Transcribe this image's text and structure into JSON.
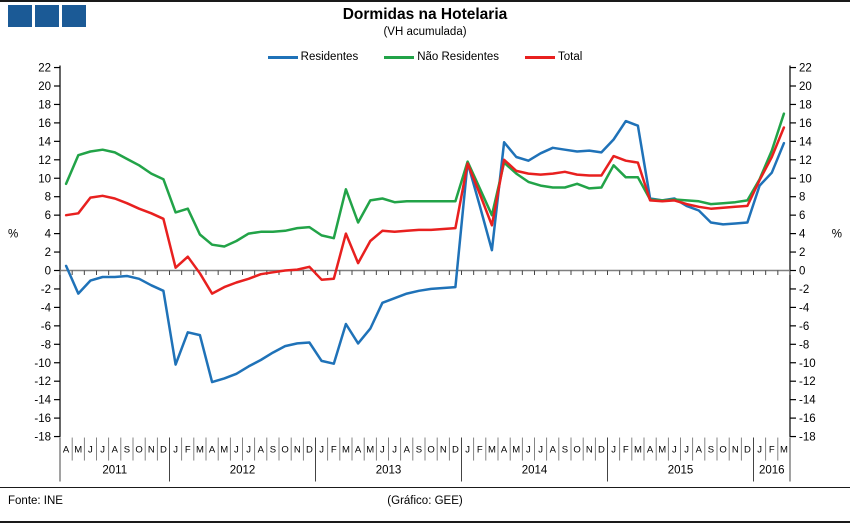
{
  "logo": {
    "square_color": "#1b5a96",
    "square_count": 3
  },
  "title": "Dormidas na Hotelaria",
  "subtitle": "(VH acumulada)",
  "legend": [
    {
      "label": "Residentes",
      "color": "#1f72b8"
    },
    {
      "label": "Não Residentes",
      "color": "#22a348"
    },
    {
      "label": "Total",
      "color": "#e8201f"
    }
  ],
  "footer": {
    "source": "Fonte: INE",
    "credit": "(Gráfico: GEE)"
  },
  "chart_data": {
    "type": "line",
    "title": "Dormidas na Hotelaria",
    "subtitle": "(VH acumulada)",
    "ylabel_left": "%",
    "ylabel_right": "%",
    "ylim": [
      -18,
      22
    ],
    "ytick_step": 2,
    "grid": false,
    "legend_position": "top",
    "years": [
      {
        "label": "2011",
        "months": [
          "A",
          "M",
          "J",
          "J",
          "A",
          "S",
          "O",
          "N",
          "D"
        ]
      },
      {
        "label": "2012",
        "months": [
          "J",
          "F",
          "M",
          "A",
          "M",
          "J",
          "J",
          "A",
          "S",
          "O",
          "N",
          "D"
        ]
      },
      {
        "label": "2013",
        "months": [
          "J",
          "F",
          "M",
          "A",
          "M",
          "J",
          "J",
          "A",
          "S",
          "O",
          "N",
          "D"
        ]
      },
      {
        "label": "2014",
        "months": [
          "J",
          "F",
          "M",
          "A",
          "M",
          "J",
          "J",
          "A",
          "S",
          "O",
          "N",
          "D"
        ]
      },
      {
        "label": "2015",
        "months": [
          "J",
          "F",
          "M",
          "A",
          "M",
          "J",
          "J",
          "A",
          "S",
          "O",
          "N",
          "D"
        ]
      },
      {
        "label": "2016",
        "months": [
          "J",
          "F",
          "M"
        ]
      }
    ],
    "series": [
      {
        "name": "Residentes",
        "color": "#1f72b8",
        "values": [
          0.5,
          -2.5,
          -1.1,
          -0.7,
          -0.7,
          -0.6,
          -0.9,
          -1.6,
          -2.2,
          -10.2,
          -6.7,
          -7.0,
          -12.1,
          -11.7,
          -11.2,
          -10.4,
          -9.7,
          -8.9,
          -8.2,
          -7.9,
          -7.8,
          -9.8,
          -10.1,
          -5.8,
          -7.9,
          -6.3,
          -3.5,
          -3.0,
          -2.5,
          -2.2,
          -2.0,
          -1.9,
          -1.8,
          11.7,
          7.0,
          2.2,
          13.9,
          12.3,
          11.9,
          12.7,
          13.3,
          13.1,
          12.9,
          13.0,
          12.8,
          14.2,
          16.2,
          15.7,
          7.8,
          7.6,
          7.8,
          7.0,
          6.5,
          5.2,
          5.0,
          5.1,
          5.2,
          9.2,
          10.6,
          13.8
        ]
      },
      {
        "name": "Não Residentes",
        "color": "#22a348",
        "values": [
          9.4,
          12.5,
          12.9,
          13.1,
          12.8,
          12.1,
          11.4,
          10.5,
          9.9,
          6.3,
          6.7,
          3.9,
          2.8,
          2.6,
          3.2,
          4.0,
          4.2,
          4.2,
          4.3,
          4.6,
          4.7,
          3.8,
          3.5,
          8.8,
          5.2,
          7.6,
          7.8,
          7.4,
          7.5,
          7.5,
          7.5,
          7.5,
          7.5,
          11.8,
          8.9,
          6.0,
          11.7,
          10.5,
          9.6,
          9.2,
          9.0,
          9.0,
          9.4,
          8.9,
          9.0,
          11.4,
          10.1,
          10.1,
          7.7,
          7.6,
          7.7,
          7.6,
          7.5,
          7.2,
          7.3,
          7.4,
          7.6,
          9.9,
          13.0,
          17.0
        ]
      },
      {
        "name": "Total",
        "color": "#e8201f",
        "values": [
          6.0,
          6.2,
          7.9,
          8.1,
          7.8,
          7.3,
          6.7,
          6.2,
          5.6,
          0.3,
          1.5,
          -0.3,
          -2.5,
          -1.8,
          -1.3,
          -0.9,
          -0.4,
          -0.2,
          0.0,
          0.1,
          0.4,
          -1.0,
          -0.9,
          4.0,
          0.8,
          3.2,
          4.3,
          4.2,
          4.3,
          4.4,
          4.4,
          4.5,
          4.6,
          11.6,
          8.3,
          4.9,
          12.0,
          10.8,
          10.5,
          10.4,
          10.5,
          10.7,
          10.4,
          10.3,
          10.3,
          12.4,
          11.9,
          11.7,
          7.6,
          7.5,
          7.6,
          7.2,
          6.9,
          6.7,
          6.8,
          6.9,
          7.0,
          9.8,
          12.3,
          15.5
        ]
      }
    ]
  }
}
